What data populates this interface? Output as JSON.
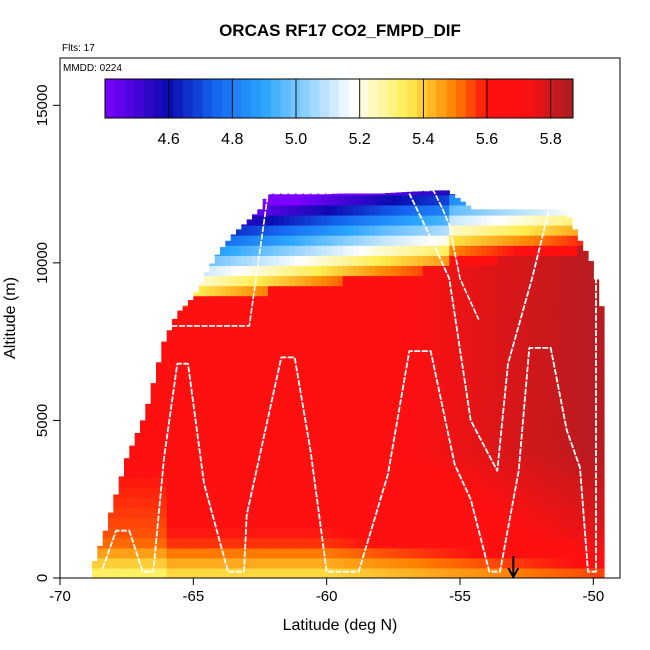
{
  "chart_data": {
    "type": "heatmap",
    "title": "ORCAS RF17 CO2_FMPD_DIF",
    "annotation_flights": "Flts: 17",
    "annotation_mmdd": "MMDD: 0224",
    "xlabel": "Latitude (deg N)",
    "ylabel": "Altitude (m)",
    "xlim": [
      -70,
      -49
    ],
    "ylim": [
      0,
      16500
    ],
    "xticks": [
      -70,
      -65,
      -60,
      -55,
      -50
    ],
    "yticks": [
      0,
      5000,
      10000,
      15000
    ],
    "colorbar": {
      "range": [
        4.4,
        5.87
      ],
      "ticks": [
        4.6,
        4.8,
        5.0,
        5.2,
        5.4,
        5.6,
        5.8
      ],
      "tick_labels": [
        "4.6",
        "4.8",
        "5.0",
        "5.2",
        "5.4",
        "5.6",
        "5.8"
      ]
    },
    "colors": {
      "purple": "#7d00ff",
      "navy": "#0b0bb0",
      "blue": "#1566f0",
      "sky": "#2aa6ff",
      "white": "#ffffff",
      "yellow": "#ffee50",
      "orange": "#ff8000",
      "red": "#ff1010",
      "darkred": "#a61e24",
      "track": "#ffffff"
    },
    "coverage": {
      "lat": [
        -68.8,
        -68.3,
        -67.5,
        -66.8,
        -66.1,
        -65.6,
        -65,
        -64.5,
        -64,
        -63.5,
        -63,
        -62.5,
        -62.2,
        -61.5,
        -61,
        -60,
        -59,
        -58,
        -57,
        -56,
        -55.5,
        -55,
        -54.5,
        -54,
        -53.5,
        -53,
        -52.5,
        -52,
        -51.5,
        -51,
        -50.5,
        -50,
        -49.6
      ],
      "top_alt": [
        300,
        1500,
        3800,
        5200,
        7500,
        8400,
        8900,
        9700,
        10400,
        10900,
        11300,
        11700,
        12200,
        12200,
        12200,
        12200,
        12200,
        12200,
        12250,
        12300,
        12300,
        12000,
        11700,
        11700,
        11700,
        11700,
        11700,
        11700,
        11700,
        11600,
        10700,
        9900,
        8200
      ]
    },
    "track_segments": [
      {
        "lat": [
          -68.4,
          -67.9,
          -67.4,
          -66.9,
          -66.5,
          -66.1,
          -65.6,
          -65.2,
          -64.6,
          -63.7,
          -63.1,
          -63.0,
          -61.7,
          -61.2,
          -60.6,
          -60.0,
          -59.5,
          -58.8,
          -57.7,
          -56.9,
          -56.1,
          -55.2,
          -54.6,
          -53.9,
          -53.5,
          -52.8,
          -52.4,
          -51.6,
          -51.0,
          -50.5,
          -50.2,
          -49.9,
          -49.9,
          -50.4,
          -51.0,
          -51.6,
          -52.3,
          -53.2,
          -53.6,
          -54.6,
          -55.4,
          -56.1,
          -56.9
        ],
        "alt": [
          300,
          1500,
          1500,
          200,
          200,
          3800,
          6800,
          6800,
          3000,
          200,
          200,
          2000,
          7000,
          7000,
          4000,
          200,
          200,
          200,
          3300,
          7200,
          7200,
          3600,
          2500,
          200,
          200,
          3400,
          7300,
          7300,
          4700,
          3500,
          200,
          200,
          11600,
          11900,
          11900,
          11900,
          9500,
          6800,
          3400,
          5000,
          9500,
          10800,
          12200
        ]
      },
      {
        "lat": [
          -66.1,
          -65.0,
          -63.5,
          -62.9,
          -62.2,
          -61.0,
          -60.0,
          -59.0,
          -58.0,
          -57.0,
          -56.0,
          -55.7,
          -55.4,
          -55.0,
          -54.3
        ],
        "alt": [
          8000,
          8000,
          8000,
          8000,
          12200,
          12200,
          12200,
          12250,
          12300,
          12300,
          12300,
          11800,
          11200,
          9500,
          8200
        ]
      }
    ],
    "marker": {
      "lat": -53.0,
      "label": "arrow"
    }
  }
}
